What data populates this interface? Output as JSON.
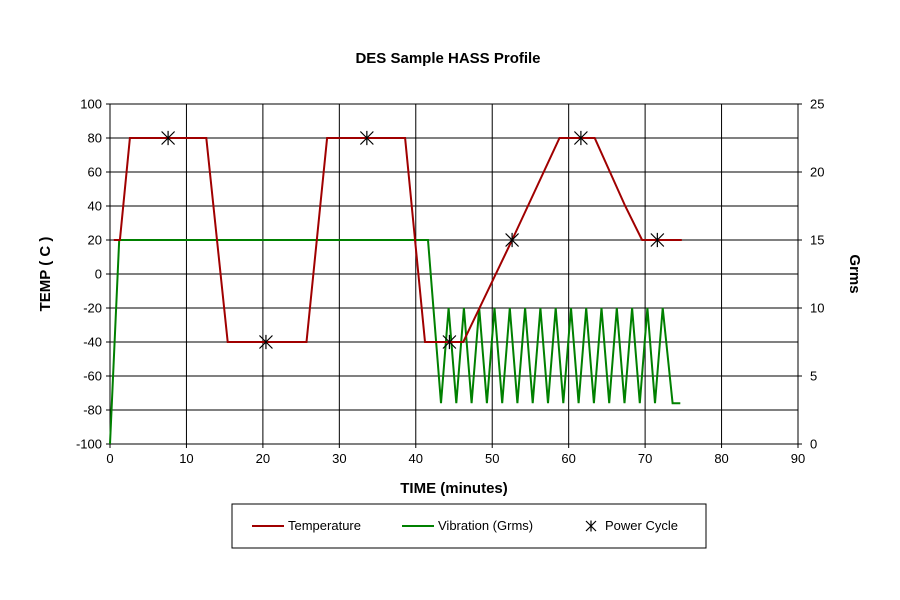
{
  "chart_data": {
    "type": "line",
    "title": "DES Sample HASS Profile",
    "xlabel": "TIME (minutes)",
    "ylabel": "TEMP ( C )",
    "y2label": "Grms",
    "xlim": [
      0,
      90
    ],
    "ylim": [
      -100,
      100
    ],
    "y2lim": [
      0,
      25
    ],
    "xticks": [
      0,
      10,
      20,
      30,
      40,
      50,
      60,
      70,
      80,
      90
    ],
    "yticks": [
      -100,
      -80,
      -60,
      -40,
      -20,
      0,
      20,
      40,
      60,
      80,
      100
    ],
    "y2ticks": [
      0,
      5,
      10,
      15,
      20,
      25
    ],
    "grid": true,
    "legend_position": "bottom",
    "temperature": {
      "name": "Temperature",
      "color": "#a00000",
      "x": [
        0.5,
        1.3,
        2.6,
        12.6,
        15.4,
        25.7,
        28.4,
        38.6,
        41.2,
        43.8,
        46.2,
        52.6,
        58.8,
        63.4,
        67.4,
        69.6,
        74.8
      ],
      "y": [
        20,
        20,
        80,
        80,
        -40,
        -40,
        80,
        80,
        -40,
        -40,
        -40,
        20,
        80,
        80,
        40,
        20,
        20
      ]
    },
    "vibration": {
      "name": "Vibration (Grms)",
      "color": "#008000",
      "steady": [
        [
          0,
          0
        ],
        [
          1.2,
          15
        ],
        [
          41.2,
          15
        ],
        [
          41.6,
          15
        ]
      ],
      "random_start": 43.3,
      "random_end": 73,
      "period": 2.0,
      "high": 10,
      "low": 3,
      "tail": [
        [
          73.6,
          3
        ],
        [
          74.6,
          3
        ]
      ]
    },
    "power_cycles": {
      "name": "Power Cycle",
      "color": "#000000",
      "x": [
        7.6,
        20.4,
        33.6,
        44.4,
        52.6,
        61.6,
        71.6
      ],
      "y": [
        80,
        -40,
        80,
        -40,
        20,
        80,
        20
      ]
    }
  }
}
